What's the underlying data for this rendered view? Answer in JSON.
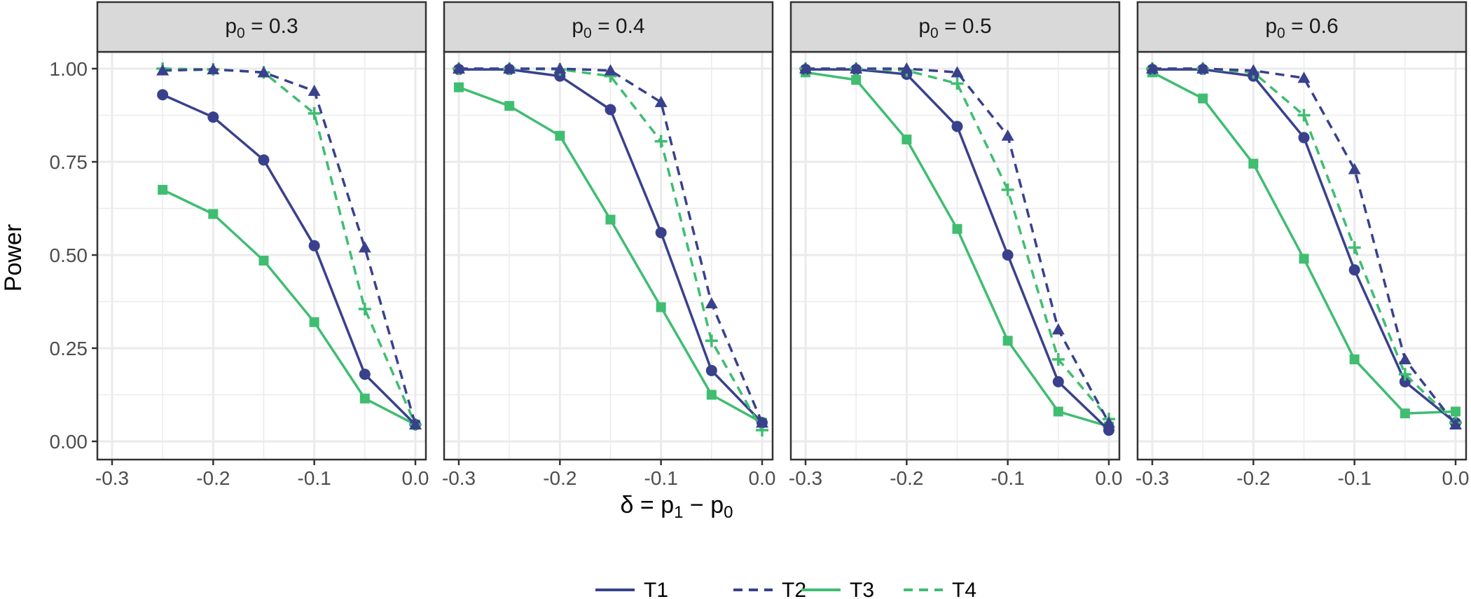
{
  "figure": {
    "ylabel": "Power",
    "xlabel_parts": {
      "delta": "δ",
      "eq": " = ",
      "p": "p",
      "sub1": "1",
      "minus": " − ",
      "sub0": "0"
    }
  },
  "colors": {
    "navy": "#39418d",
    "green": "#3fbd71",
    "panel_background": "#ffffff",
    "strip_background": "#d9d9d9",
    "grid": "#ebebeb",
    "frame": "#333333"
  },
  "chart_data": {
    "type": "line",
    "facet_var": "p0",
    "ylabel": "Power",
    "xlabel": "δ = p1 − p0",
    "xlim": [
      -0.3,
      0.0
    ],
    "ylim": [
      0.0,
      1.0
    ],
    "xticks": [
      "-0.3",
      "-0.2",
      "-0.1",
      "0.0"
    ],
    "yticks": [
      "0.00",
      "0.25",
      "0.50",
      "0.75",
      "1.00"
    ],
    "grid": true,
    "legend_position": "bottom",
    "legend": [
      {
        "name": "T1",
        "color": "#39418d",
        "linetype": "solid",
        "marker": "circle"
      },
      {
        "name": "T2",
        "color": "#39418d",
        "linetype": "dashed",
        "marker": "triangle"
      },
      {
        "name": "T3",
        "color": "#3fbd71",
        "linetype": "solid",
        "marker": "square"
      },
      {
        "name": "T4",
        "color": "#3fbd71",
        "linetype": "dashed",
        "marker": "plus"
      }
    ],
    "panels": [
      {
        "strip": {
          "p": "p",
          "sub": "0",
          "value": " = 0.3"
        },
        "x": [
          -0.25,
          -0.2,
          -0.15,
          -0.1,
          -0.05,
          0.0
        ],
        "series": [
          {
            "name": "T1",
            "values": [
              0.93,
              0.87,
              0.755,
              0.525,
              0.18,
              0.045
            ]
          },
          {
            "name": "T2",
            "values": [
              0.995,
              0.998,
              0.99,
              0.94,
              0.52,
              0.045
            ]
          },
          {
            "name": "T3",
            "values": [
              0.675,
              0.61,
              0.485,
              0.32,
              0.115,
              0.045
            ]
          },
          {
            "name": "T4",
            "values": [
              1.0,
              0.998,
              0.99,
              0.88,
              0.355,
              0.045
            ]
          }
        ]
      },
      {
        "strip": {
          "p": "p",
          "sub": "0",
          "value": " = 0.4"
        },
        "x": [
          -0.3,
          -0.25,
          -0.2,
          -0.15,
          -0.1,
          -0.05,
          0.0
        ],
        "series": [
          {
            "name": "T1",
            "values": [
              0.998,
              0.998,
              0.98,
              0.89,
              0.56,
              0.19,
              0.05
            ]
          },
          {
            "name": "T2",
            "values": [
              1.0,
              1.0,
              1.0,
              0.995,
              0.91,
              0.37,
              0.05
            ]
          },
          {
            "name": "T3",
            "values": [
              0.95,
              0.9,
              0.82,
              0.595,
              0.36,
              0.125,
              0.05
            ]
          },
          {
            "name": "T4",
            "values": [
              1.0,
              1.0,
              0.998,
              0.98,
              0.805,
              0.27,
              0.03
            ]
          }
        ]
      },
      {
        "strip": {
          "p": "p",
          "sub": "0",
          "value": " = 0.5"
        },
        "x": [
          -0.3,
          -0.25,
          -0.2,
          -0.15,
          -0.1,
          -0.05,
          0.0
        ],
        "series": [
          {
            "name": "T1",
            "values": [
              0.998,
              0.998,
              0.985,
              0.845,
              0.5,
              0.16,
              0.03
            ]
          },
          {
            "name": "T2",
            "values": [
              1.0,
              1.0,
              1.0,
              0.99,
              0.82,
              0.3,
              0.05
            ]
          },
          {
            "name": "T3",
            "values": [
              0.99,
              0.97,
              0.81,
              0.57,
              0.27,
              0.08,
              0.04
            ]
          },
          {
            "name": "T4",
            "values": [
              1.0,
              1.0,
              0.995,
              0.96,
              0.675,
              0.22,
              0.06
            ]
          }
        ]
      },
      {
        "strip": {
          "p": "p",
          "sub": "0",
          "value": " = 0.6"
        },
        "x": [
          -0.3,
          -0.25,
          -0.2,
          -0.15,
          -0.1,
          -0.05,
          0.0
        ],
        "series": [
          {
            "name": "T1",
            "values": [
              0.998,
              0.998,
              0.98,
              0.815,
              0.46,
              0.16,
              0.05
            ]
          },
          {
            "name": "T2",
            "values": [
              1.0,
              1.0,
              0.995,
              0.975,
              0.73,
              0.22,
              0.045
            ]
          },
          {
            "name": "T3",
            "values": [
              0.99,
              0.92,
              0.745,
              0.49,
              0.22,
              0.075,
              0.08
            ]
          },
          {
            "name": "T4",
            "values": [
              1.0,
              1.0,
              0.99,
              0.875,
              0.52,
              0.18,
              0.05
            ]
          }
        ]
      }
    ]
  }
}
